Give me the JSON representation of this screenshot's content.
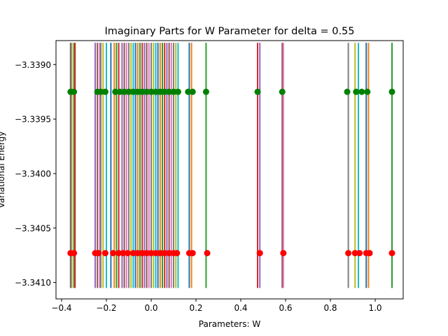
{
  "chart_data": {
    "type": "line",
    "title": "Imaginary Parts for W Parameter for delta = 0.55",
    "xlabel": "Parameters: W",
    "ylabel": "Variational Energy",
    "xlim": [
      -0.425,
      1.125
    ],
    "ylim": [
      -3.34115,
      -3.33878
    ],
    "x_ticks": [
      -0.4,
      -0.2,
      0.0,
      0.2,
      0.4,
      0.6,
      0.8,
      1.0
    ],
    "x_tick_labels": [
      "−0.4",
      "−0.2",
      "0.0",
      "0.2",
      "0.4",
      "0.6",
      "0.8",
      "1.0"
    ],
    "y_ticks": [
      -3.339,
      -3.3395,
      -3.34,
      -3.3405,
      -3.341
    ],
    "y_tick_labels": [
      "−3.3390",
      "−3.3395",
      "−3.3400",
      "−3.3405",
      "−3.3410"
    ],
    "grid": false,
    "line_y_range": [
      -3.34105,
      -3.3388
    ],
    "upper_marker_y": -3.33925,
    "lower_marker_y": -3.34073,
    "upper_marker_color": "#008000",
    "lower_marker_color": "#ff0000",
    "series_colors": [
      "#1f77b4",
      "#ff7f0e",
      "#2ca02c",
      "#d62728",
      "#9467bd",
      "#8c564b",
      "#e377c2",
      "#7f7f7f",
      "#bcbd22",
      "#17becf"
    ],
    "line_x": [
      -0.36,
      -0.355,
      -0.345,
      -0.34,
      -0.25,
      -0.24,
      -0.23,
      -0.225,
      -0.215,
      -0.2,
      -0.18,
      -0.165,
      -0.155,
      -0.145,
      -0.13,
      -0.12,
      -0.11,
      -0.1,
      -0.09,
      -0.08,
      -0.07,
      -0.06,
      -0.05,
      -0.04,
      -0.03,
      -0.02,
      -0.01,
      0.0,
      0.01,
      0.02,
      0.03,
      0.04,
      0.05,
      0.06,
      0.07,
      0.08,
      0.09,
      0.1,
      0.11,
      0.12,
      0.17,
      0.18,
      0.245,
      0.475,
      0.485,
      0.585,
      0.59,
      0.88,
      0.91,
      0.925,
      0.96,
      0.97,
      1.075
    ],
    "upper_marker_x": [
      -0.36,
      -0.345,
      -0.24,
      -0.225,
      -0.205,
      -0.16,
      -0.14,
      -0.12,
      -0.1,
      -0.08,
      -0.06,
      -0.04,
      -0.02,
      0.0,
      0.02,
      0.04,
      0.06,
      0.08,
      0.1,
      0.12,
      0.165,
      0.185,
      0.245,
      0.475,
      0.585,
      0.875,
      0.915,
      0.94,
      0.965,
      1.075
    ],
    "lower_marker_x": [
      -0.36,
      -0.345,
      -0.25,
      -0.235,
      -0.205,
      -0.17,
      -0.145,
      -0.125,
      -0.105,
      -0.08,
      -0.06,
      -0.04,
      -0.02,
      0.0,
      0.02,
      0.04,
      0.06,
      0.08,
      0.1,
      0.115,
      0.17,
      0.185,
      0.25,
      0.485,
      0.59,
      0.88,
      0.91,
      0.93,
      0.96,
      0.975,
      1.075
    ]
  }
}
